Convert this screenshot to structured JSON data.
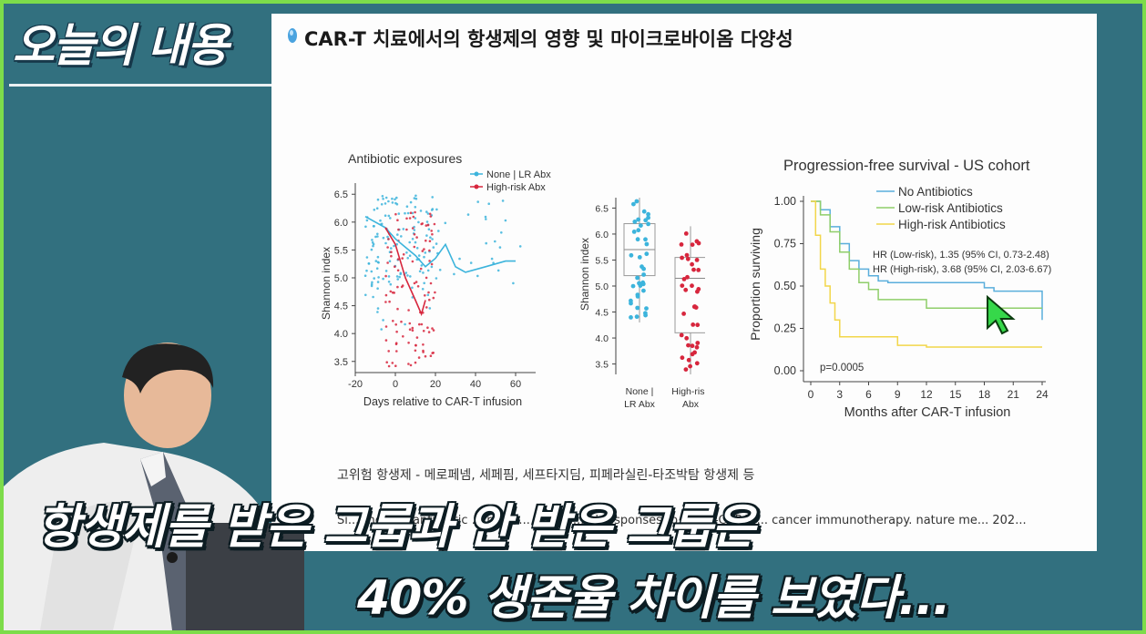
{
  "overlay_title": "오늘의 내용",
  "slide": {
    "title": "CAR-T 치료에서의 항생제의 영향 및 마이크로바이옴 다양성",
    "note": "고위험 항생제 - 메로페넴, 세페핌, 세프타지딤, 피페라실린-타조박탐 항생제 등",
    "reference": "Si... the non-antibiotic ... r... is ... ated w... al responses to CD19-CAR-T ... cancer immunotherapy. nature me... 202..."
  },
  "subtitles": {
    "line1": "항생제를 받은 그룹과 안 받은 그룹은",
    "line2": "40% 생존율 차이를 보였다..."
  },
  "chart_data": [
    {
      "type": "scatter",
      "title": "Antibiotic exposures",
      "xlabel": "Days relative to CAR-T infusion",
      "ylabel": "Shannon index",
      "xlim": [
        -20,
        70
      ],
      "ylim": [
        3.3,
        6.7
      ],
      "xticks": [
        "-20",
        "0",
        "20",
        "40",
        "60"
      ],
      "yticks": [
        "3.5",
        "4.0",
        "4.5",
        "5.0",
        "5.5",
        "6.0",
        "6.5"
      ],
      "legend": [
        "None | LR Abx",
        "High-risk Abx"
      ],
      "legend_position": "top-right",
      "series": [
        {
          "name": "None | LR Abx",
          "color": "#3cb4dc",
          "trend_x": [
            -15,
            -5,
            0,
            5,
            10,
            15,
            20,
            25,
            30,
            35,
            45,
            55,
            60
          ],
          "trend_y": [
            6.1,
            5.9,
            5.7,
            5.55,
            5.4,
            5.2,
            5.35,
            5.6,
            5.2,
            5.1,
            5.2,
            5.3,
            5.3
          ]
        },
        {
          "name": "High-risk Abx",
          "color": "#d7263d",
          "trend_x": [
            -5,
            0,
            5,
            10,
            13,
            15
          ],
          "trend_y": [
            5.9,
            5.6,
            5.0,
            4.6,
            4.35,
            4.6
          ]
        }
      ]
    },
    {
      "type": "box",
      "ylabel": "Shannon index",
      "categories": [
        "None | LR Abx",
        "High-risk Abx"
      ],
      "ylim": [
        3.3,
        6.7
      ],
      "yticks": [
        "3.5",
        "4.0",
        "4.5",
        "5.0",
        "5.5",
        "6.0",
        "6.5"
      ],
      "boxes": [
        {
          "name": "None | LR Abx",
          "color": "#3cb4dc",
          "min": 4.3,
          "q1": 5.2,
          "median": 5.7,
          "q3": 6.2,
          "max": 6.7
        },
        {
          "name": "High-risk Abx",
          "color": "#d7263d",
          "min": 3.3,
          "q1": 4.1,
          "median": 5.15,
          "q3": 5.55,
          "max": 6.15
        }
      ]
    },
    {
      "type": "line",
      "title": "Progression-free survival - US cohort",
      "xlabel": "Months after CAR-T infusion",
      "ylabel": "Proportion surviving",
      "xlim": [
        0,
        24
      ],
      "ylim": [
        0,
        1
      ],
      "xticks": [
        "0",
        "3",
        "6",
        "9",
        "12",
        "15",
        "18",
        "21",
        "24"
      ],
      "yticks": [
        "0.00",
        "0.25",
        "0.50",
        "0.75",
        "1.00"
      ],
      "legend_position": "top-right",
      "annotations": [
        "HR (Low-risk), 1.35 (95% CI, 0.73-2.48)",
        "HR (High-risk), 3.68 (95% CI, 2.03-6.67)",
        "p=0.0005"
      ],
      "series": [
        {
          "name": "No Antibiotics",
          "color": "#5aaedc",
          "x": [
            0,
            1,
            2,
            3,
            4,
            5,
            6,
            7,
            8,
            9,
            12,
            15,
            18,
            19,
            24,
            24
          ],
          "y": [
            1.0,
            0.95,
            0.85,
            0.75,
            0.65,
            0.6,
            0.56,
            0.53,
            0.52,
            0.52,
            0.52,
            0.52,
            0.49,
            0.47,
            0.47,
            0.3
          ]
        },
        {
          "name": "Low-risk Antibiotics",
          "color": "#8fce6a",
          "x": [
            0,
            1,
            2,
            3,
            4,
            5,
            6,
            7,
            9,
            12,
            15,
            18,
            21,
            24
          ],
          "y": [
            1.0,
            0.92,
            0.82,
            0.7,
            0.6,
            0.52,
            0.48,
            0.42,
            0.42,
            0.37,
            0.37,
            0.37,
            0.37,
            0.37
          ]
        },
        {
          "name": "High-risk Antibiotics",
          "color": "#f2d64a",
          "x": [
            0,
            0.5,
            1,
            1.5,
            2,
            2.5,
            3,
            6,
            9,
            12,
            18,
            24
          ],
          "y": [
            1.0,
            0.8,
            0.6,
            0.5,
            0.4,
            0.3,
            0.2,
            0.2,
            0.15,
            0.14,
            0.14,
            0.14
          ]
        }
      ]
    }
  ]
}
